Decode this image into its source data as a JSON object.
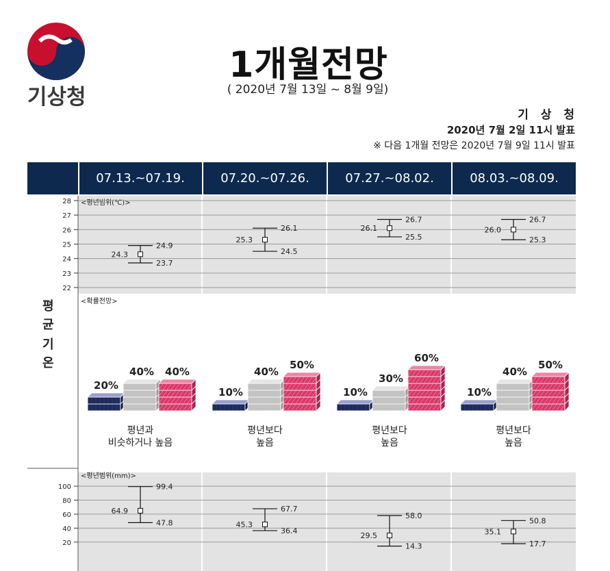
{
  "header": {
    "logo_text": "기상청",
    "title": "1개월전망",
    "subtitle": "( 2020년 7월 13일 ~ 8월 9일)",
    "issuer": "기 상 청",
    "issued": "2020년 7월 2일 11시 발표",
    "next_note": "※ 다음 1개월 전망은 2020년 7월 9일 11시 발표"
  },
  "weeks": [
    "07.13.~07.19.",
    "07.20.~07.26.",
    "07.27.~08.02.",
    "08.03.~08.09."
  ],
  "section_label": [
    "평",
    "균",
    "기",
    "온"
  ],
  "colors": {
    "header": "#0d2a4e",
    "below": "#8f96c4",
    "normal": "#c9c9c9",
    "above": "#e0507c"
  },
  "chart_data": [
    {
      "type": "errorbar",
      "title": "<평년범위(℃)>",
      "ylim": [
        22,
        28
      ],
      "yticks": [
        "22",
        "23",
        "24",
        "25",
        "26",
        "27",
        "28"
      ],
      "categories": [
        "07.13.~07.19.",
        "07.20.~07.26.",
        "07.27.~08.02.",
        "08.03.~08.09."
      ],
      "series": [
        {
          "lower": 23.7,
          "mid": 24.3,
          "upper": 24.9,
          "lower_label": "23.7",
          "mid_label": "24.3",
          "upper_label": "24.9"
        },
        {
          "lower": 24.5,
          "mid": 25.3,
          "upper": 26.1,
          "lower_label": "24.5",
          "mid_label": "25.3",
          "upper_label": "26.1"
        },
        {
          "lower": 25.5,
          "mid": 26.1,
          "upper": 26.7,
          "lower_label": "25.5",
          "mid_label": "26.1",
          "upper_label": "26.7"
        },
        {
          "lower": 25.3,
          "mid": 26.0,
          "upper": 26.7,
          "lower_label": "25.3",
          "mid_label": "26.0",
          "upper_label": "26.7"
        }
      ]
    },
    {
      "type": "bar",
      "title": "<확률전망>",
      "categories": [
        "07.13.~07.19.",
        "07.20.~07.26.",
        "07.27.~08.02.",
        "08.03.~08.09."
      ],
      "series": [
        {
          "name": "below",
          "values": [
            20,
            10,
            10,
            10
          ],
          "labels": [
            "20%",
            "10%",
            "10%",
            "10%"
          ]
        },
        {
          "name": "normal",
          "values": [
            40,
            40,
            30,
            40
          ],
          "labels": [
            "40%",
            "40%",
            "30%",
            "40%"
          ]
        },
        {
          "name": "above",
          "values": [
            40,
            50,
            60,
            50
          ],
          "labels": [
            "40%",
            "50%",
            "60%",
            "50%"
          ]
        }
      ],
      "captions": [
        [
          "평년과",
          "비슷하거나 높음"
        ],
        [
          "평년보다",
          "높음"
        ],
        [
          "평년보다",
          "높음"
        ],
        [
          "평년보다",
          "높음"
        ]
      ]
    },
    {
      "type": "errorbar",
      "title": "<평년범위(mm)>",
      "ylim": [
        10,
        104
      ],
      "yticks": [
        "20",
        "40",
        "60",
        "80",
        "100"
      ],
      "categories": [
        "07.13.~07.19.",
        "07.20.~07.26.",
        "07.27.~08.02.",
        "08.03.~08.09."
      ],
      "series": [
        {
          "lower": 47.8,
          "mid": 64.9,
          "upper": 99.4,
          "lower_label": "47.8",
          "mid_label": "64.9",
          "upper_label": "99.4"
        },
        {
          "lower": 36.4,
          "mid": 45.3,
          "upper": 67.7,
          "lower_label": "36.4",
          "mid_label": "45.3",
          "upper_label": "67.7"
        },
        {
          "lower": 14.3,
          "mid": 29.5,
          "upper": 58.0,
          "lower_label": "14.3",
          "mid_label": "29.5",
          "upper_label": "58.0"
        },
        {
          "lower": 17.7,
          "mid": 35.1,
          "upper": 50.8,
          "lower_label": "17.7",
          "mid_label": "35.1",
          "upper_label": "50.8"
        }
      ]
    }
  ]
}
